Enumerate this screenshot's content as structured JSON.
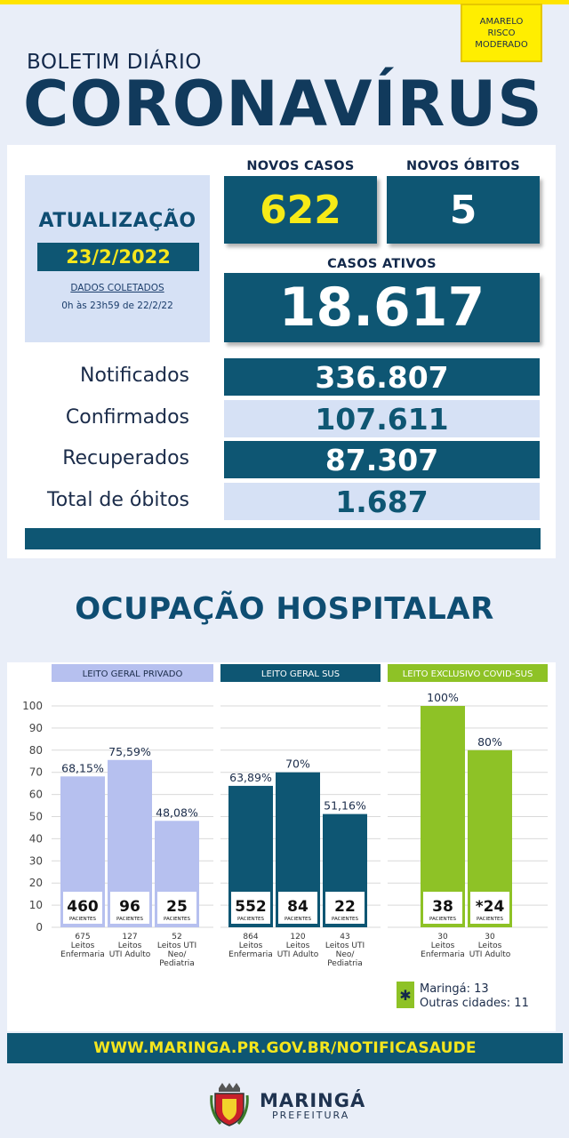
{
  "risk_badge": {
    "line1": "AMARELO",
    "line2": "RISCO",
    "line3": "MODERADO"
  },
  "header": {
    "subtitle": "BOLETIM DIÁRIO",
    "title": "CORONAVÍRUS"
  },
  "update": {
    "label": "ATUALIZAÇÃO",
    "date": "23/2/2022",
    "dados": "DADOS COLETADOS",
    "periodo": "0h às 23h59 de 22/2/22"
  },
  "novos_casos": {
    "label": "NOVOS CASOS",
    "value": "622"
  },
  "novos_obitos": {
    "label": "NOVOS ÓBITOS",
    "value": "5"
  },
  "casos_ativos": {
    "label": "CASOS ATIVOS",
    "value": "18.617"
  },
  "stats": [
    {
      "label": "Notificados",
      "value": "336.807"
    },
    {
      "label": "Confirmados",
      "value": "107.611"
    },
    {
      "label": "Recuperados",
      "value": "87.307"
    },
    {
      "label": "Total de óbitos",
      "value": "1.687"
    }
  ],
  "section_title": "OCUPAÇÃO HOSPITALAR",
  "chart_data": {
    "type": "bar",
    "ylim": [
      0,
      100
    ],
    "yticks": [
      0,
      10,
      20,
      30,
      40,
      50,
      60,
      70,
      80,
      90,
      100
    ],
    "grid": true,
    "unit_label": "PACIENTES",
    "groups": [
      {
        "name": "LEITO GERAL PRIVADO",
        "header_color": "#b6c0ef",
        "bar_color": "#b6c0ef",
        "header_text_color": "#1b2c4a",
        "bars": [
          {
            "percent_label": "68,15%",
            "value": 68.15,
            "patients": "460",
            "beds": "675",
            "cat1": "Leitos",
            "cat2": "Enfermaria",
            "cat3": ""
          },
          {
            "percent_label": "75,59%",
            "value": 75.59,
            "patients": "96",
            "beds": "127",
            "cat1": "Leitos",
            "cat2": "UTI Adulto",
            "cat3": ""
          },
          {
            "percent_label": "48,08%",
            "value": 48.08,
            "patients": "25",
            "beds": "52",
            "cat1": "Leitos UTI",
            "cat2": "Neo/",
            "cat3": "Pediatria"
          }
        ]
      },
      {
        "name": "LEITO GERAL SUS",
        "header_color": "#0e5673",
        "bar_color": "#0e5673",
        "header_text_color": "#ffffff",
        "bars": [
          {
            "percent_label": "63,89%",
            "value": 63.89,
            "patients": "552",
            "beds": "864",
            "cat1": "Leitos",
            "cat2": "Enfermaria",
            "cat3": ""
          },
          {
            "percent_label": "70%",
            "value": 70,
            "patients": "84",
            "beds": "120",
            "cat1": "Leitos",
            "cat2": "UTI Adulto",
            "cat3": ""
          },
          {
            "percent_label": "51,16%",
            "value": 51.16,
            "patients": "22",
            "beds": "43",
            "cat1": "Leitos UTI",
            "cat2": "Neo/",
            "cat3": "Pediatria"
          }
        ]
      },
      {
        "name": "LEITO EXCLUSIVO COVID-SUS",
        "header_color": "#8ec226",
        "bar_color": "#8ec226",
        "header_text_color": "#ffffff",
        "bars": [
          {
            "percent_label": "100%",
            "value": 100,
            "patients": "38",
            "beds": "30",
            "cat1": "Leitos",
            "cat2": "Enfermaria",
            "cat3": ""
          },
          {
            "percent_label": "80%",
            "value": 80,
            "patients": "*24",
            "beds": "30",
            "cat1": "Leitos",
            "cat2": "UTI Adulto",
            "cat3": ""
          }
        ]
      }
    ]
  },
  "legend": {
    "symbol": "✱",
    "line1": "Maringá: 13",
    "line2": "Outras cidades: 11"
  },
  "url": "WWW.MARINGA.PR.GOV.BR/NOTIFICASAUDE",
  "logo": {
    "name": "MARINGÁ",
    "sub": "PREFEITURA",
    "icon": "crest-icon"
  }
}
